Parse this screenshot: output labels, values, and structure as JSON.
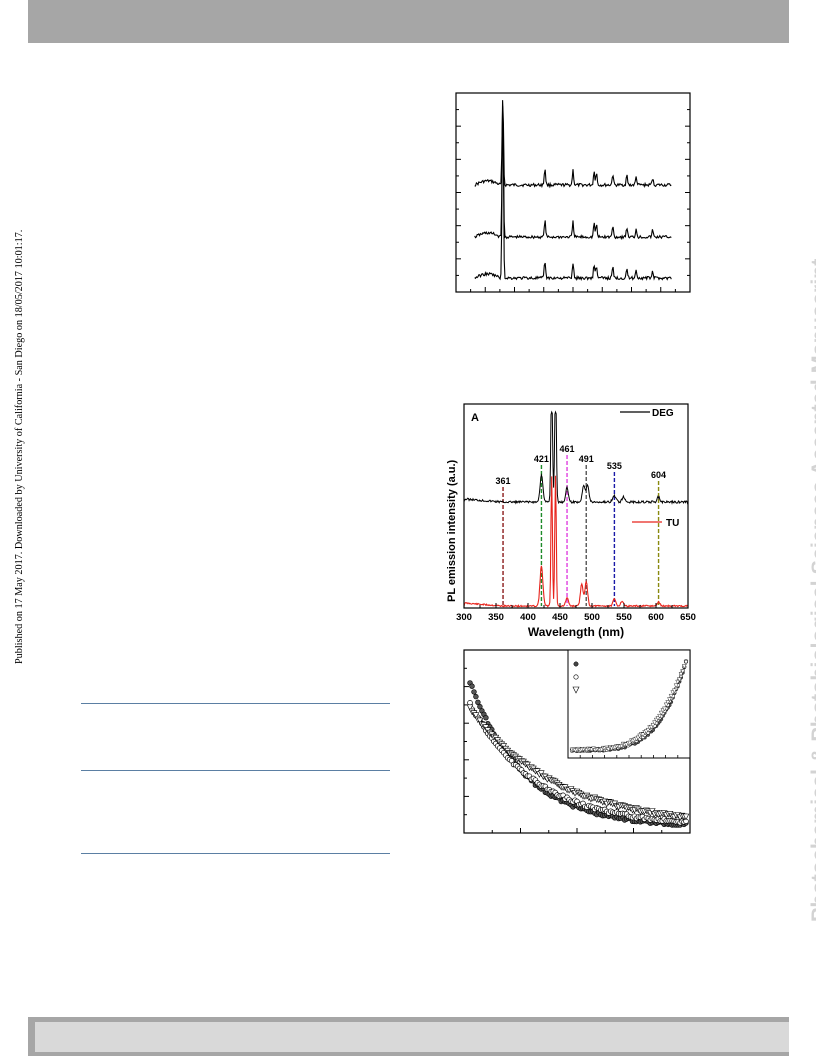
{
  "page": {
    "side_note": "Published on 17 May 2017. Downloaded by University of California - San Diego on 18/05/2017 10:01:17.",
    "watermark": "Photochemical & Photobiological Sciences Accepted Manuscript"
  },
  "colors": {
    "header_bar": "#a6a6a6",
    "footer_bar": "#a6a6a6",
    "rule": "#5b7fa3",
    "deg": "#000000",
    "tu": "#e8241c"
  },
  "chart_data": [
    {
      "type": "line",
      "title": "",
      "xlabel": "",
      "ylabel": "",
      "series": [
        {
          "offset": 3,
          "peaks": [
            0.2,
            0.38,
            0.5,
            0.59,
            0.6,
            0.67,
            0.73,
            0.77,
            0.84
          ]
        },
        {
          "offset": 2,
          "peaks": [
            0.2,
            0.38,
            0.5,
            0.59,
            0.6,
            0.67,
            0.73,
            0.77,
            0.84
          ]
        },
        {
          "offset": 1,
          "peaks": [
            0.2,
            0.38,
            0.5,
            0.59,
            0.6,
            0.67,
            0.73,
            0.77,
            0.84
          ]
        }
      ]
    },
    {
      "type": "line",
      "panel_label": "A",
      "xlabel": "Wavelength (nm)",
      "ylabel": "PL emission intensity (a.u.)",
      "xlim": [
        300,
        650
      ],
      "x_ticks": [
        "300",
        "350",
        "400",
        "450",
        "500",
        "550",
        "600",
        "650"
      ],
      "legend_position": "right",
      "series": [
        {
          "name": "DEG",
          "color": "#000000"
        },
        {
          "name": "TU",
          "color": "#e8241c"
        }
      ],
      "markers": [
        {
          "label": "361",
          "x": 361,
          "color": "#8b1a1a"
        },
        {
          "label": "421",
          "x": 421,
          "color": "#1e8b2a"
        },
        {
          "label": "461",
          "x": 461,
          "color": "#e040e0"
        },
        {
          "label": "491",
          "x": 491,
          "color": "#555555"
        },
        {
          "label": "535",
          "x": 535,
          "color": "#1a1aa8"
        },
        {
          "label": "604",
          "x": 604,
          "color": "#8a8a10"
        }
      ]
    },
    {
      "type": "scatter",
      "title": "",
      "xlabel": "",
      "ylabel": "",
      "series": [
        {
          "marker": "filled-circle"
        },
        {
          "marker": "open-circle"
        },
        {
          "marker": "open-triangle-down"
        }
      ],
      "inset": true
    }
  ]
}
